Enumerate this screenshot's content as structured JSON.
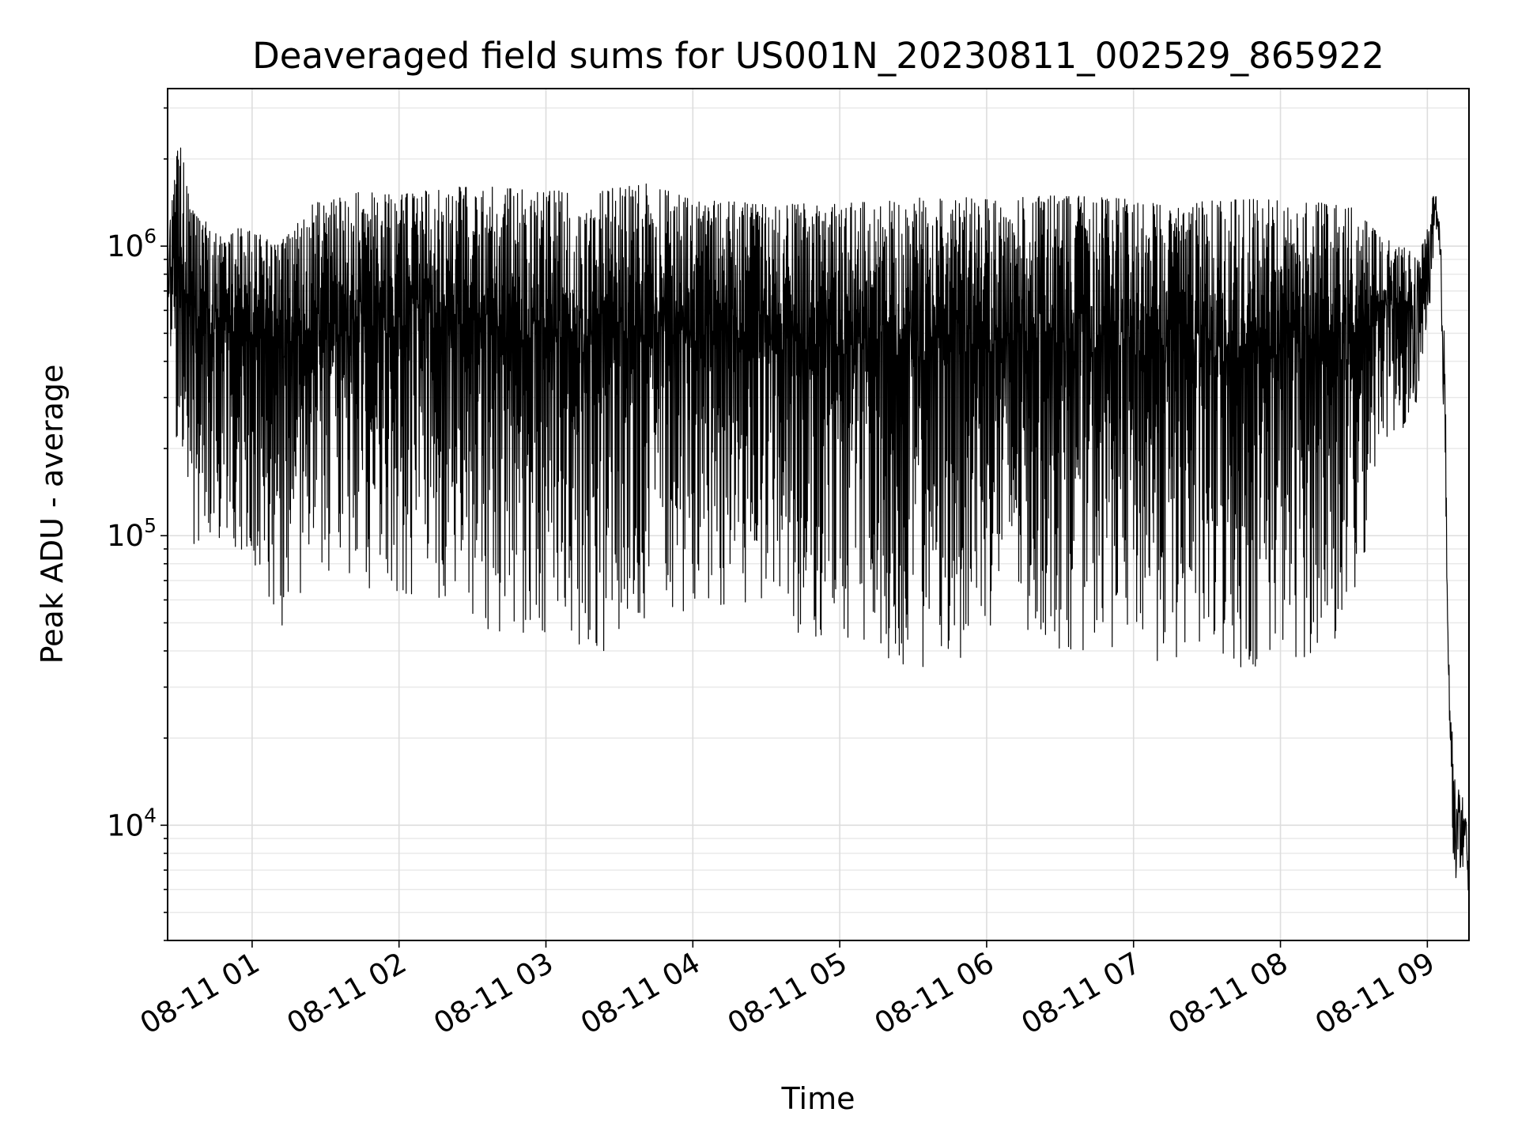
{
  "chart_data": {
    "type": "line",
    "title": "Deaveraged field sums for US001N_20230811_002529_865922",
    "xlabel": "Time",
    "ylabel": "Peak ADU - average",
    "yscale": "log",
    "ylim": [
      4000,
      3500000
    ],
    "xlim": [
      "2023-08-11 00:25:29",
      "2023-08-11 09:17:00"
    ],
    "grid": true,
    "x_ticks": [
      {
        "t": "2023-08-11 01:00:00",
        "label": "08-11 01"
      },
      {
        "t": "2023-08-11 02:00:00",
        "label": "08-11 02"
      },
      {
        "t": "2023-08-11 03:00:00",
        "label": "08-11 03"
      },
      {
        "t": "2023-08-11 04:00:00",
        "label": "08-11 04"
      },
      {
        "t": "2023-08-11 05:00:00",
        "label": "08-11 05"
      },
      {
        "t": "2023-08-11 06:00:00",
        "label": "08-11 06"
      },
      {
        "t": "2023-08-11 07:00:00",
        "label": "08-11 07"
      },
      {
        "t": "2023-08-11 08:00:00",
        "label": "08-11 08"
      },
      {
        "t": "2023-08-11 09:00:00",
        "label": "08-11 09"
      }
    ],
    "y_ticks": [
      {
        "value": 10000,
        "base": "10",
        "exp": "4"
      },
      {
        "value": 100000,
        "base": "10",
        "exp": "5"
      },
      {
        "value": 1000000,
        "base": "10",
        "exp": "6"
      }
    ],
    "series": [
      {
        "color": "#000000",
        "envelope": [
          {
            "t": "2023-08-11 00:25:29",
            "high": 1000000,
            "low": 700000
          },
          {
            "t": "2023-08-11 00:30:00",
            "high": 2400000,
            "low": 140000
          },
          {
            "t": "2023-08-11 00:36:00",
            "high": 1300000,
            "low": 76000
          },
          {
            "t": "2023-08-11 00:45:00",
            "high": 1150000,
            "low": 95000
          },
          {
            "t": "2023-08-11 01:00:00",
            "high": 1150000,
            "low": 85000
          },
          {
            "t": "2023-08-11 01:10:00",
            "high": 1000000,
            "low": 39000
          },
          {
            "t": "2023-08-11 01:25:00",
            "high": 1400000,
            "low": 75000
          },
          {
            "t": "2023-08-11 01:40:00",
            "high": 1550000,
            "low": 56000
          },
          {
            "t": "2023-08-11 02:00:00",
            "high": 1500000,
            "low": 60000
          },
          {
            "t": "2023-08-11 02:20:00",
            "high": 1600000,
            "low": 60000
          },
          {
            "t": "2023-08-11 02:40:00",
            "high": 1600000,
            "low": 45000
          },
          {
            "t": "2023-08-11 03:00:00",
            "high": 1550000,
            "low": 45000
          },
          {
            "t": "2023-08-11 03:20:00",
            "high": 1550000,
            "low": 36000
          },
          {
            "t": "2023-08-11 03:40:00",
            "high": 1650000,
            "low": 50000
          },
          {
            "t": "2023-08-11 04:00:00",
            "high": 1450000,
            "low": 55000
          },
          {
            "t": "2023-08-11 04:30:00",
            "high": 1400000,
            "low": 60000
          },
          {
            "t": "2023-08-11 04:40:00",
            "high": 1400000,
            "low": 45000
          },
          {
            "t": "2023-08-11 05:00:00",
            "high": 1400000,
            "low": 40000
          },
          {
            "t": "2023-08-11 05:20:00",
            "high": 1450000,
            "low": 36000
          },
          {
            "t": "2023-08-11 05:40:00",
            "high": 1500000,
            "low": 32000
          },
          {
            "t": "2023-08-11 06:00:00",
            "high": 1450000,
            "low": 45000
          },
          {
            "t": "2023-08-11 06:30:00",
            "high": 1500000,
            "low": 40000
          },
          {
            "t": "2023-08-11 07:00:00",
            "high": 1450000,
            "low": 40000
          },
          {
            "t": "2023-08-11 07:15:00",
            "high": 1400000,
            "low": 34000
          },
          {
            "t": "2023-08-11 07:40:00",
            "high": 1450000,
            "low": 31000
          },
          {
            "t": "2023-08-11 08:00:00",
            "high": 1450000,
            "low": 36000
          },
          {
            "t": "2023-08-11 08:20:00",
            "high": 1400000,
            "low": 38000
          },
          {
            "t": "2023-08-11 08:30:00",
            "high": 1350000,
            "low": 42000
          },
          {
            "t": "2023-08-11 08:40:00",
            "high": 1100000,
            "low": 200000
          },
          {
            "t": "2023-08-11 08:55:00",
            "high": 950000,
            "low": 250000
          },
          {
            "t": "2023-08-11 09:00:00",
            "high": 1200000,
            "low": 500000
          },
          {
            "t": "2023-08-11 09:03:00",
            "high": 1600000,
            "low": 1000000
          },
          {
            "t": "2023-08-11 09:05:00",
            "high": 1300000,
            "low": 800000
          },
          {
            "t": "2023-08-11 09:07:00",
            "high": 500000,
            "low": 200000
          },
          {
            "t": "2023-08-11 09:09:00",
            "high": 40000,
            "low": 20000
          },
          {
            "t": "2023-08-11 09:11:00",
            "high": 14500,
            "low": 6200
          },
          {
            "t": "2023-08-11 09:14:00",
            "high": 13500,
            "low": 7000
          },
          {
            "t": "2023-08-11 09:17:00",
            "high": 10000,
            "low": 5800
          }
        ]
      }
    ]
  }
}
